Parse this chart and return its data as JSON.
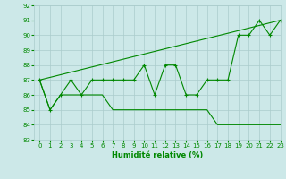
{
  "xlabel": "Humidité relative (%)",
  "xlim": [
    -0.5,
    23
  ],
  "ylim": [
    83,
    92
  ],
  "yticks": [
    83,
    84,
    85,
    86,
    87,
    88,
    89,
    90,
    91,
    92
  ],
  "xticks": [
    0,
    1,
    2,
    3,
    4,
    5,
    6,
    7,
    8,
    9,
    10,
    11,
    12,
    13,
    14,
    15,
    16,
    17,
    18,
    19,
    20,
    21,
    22,
    23
  ],
  "background_color": "#cce8e8",
  "grid_color": "#aacccc",
  "line_color": "#008800",
  "line1_x": [
    0,
    1,
    2,
    3,
    4,
    5,
    6,
    7,
    8,
    9,
    10,
    11,
    12,
    13,
    14,
    15,
    16,
    17,
    18,
    19,
    20,
    21,
    22,
    23
  ],
  "line1_y": [
    87,
    85,
    86,
    87,
    86,
    87,
    87,
    87,
    87,
    87,
    88,
    86,
    88,
    88,
    86,
    86,
    87,
    87,
    87,
    90,
    90,
    91,
    90,
    91
  ],
  "line2_x": [
    0,
    23
  ],
  "line2_y": [
    87,
    91
  ],
  "line3_x": [
    0,
    1,
    2,
    3,
    4,
    5,
    6,
    7,
    8,
    9,
    10,
    11,
    12,
    13,
    14,
    15,
    16,
    17,
    18,
    19,
    20,
    21,
    22,
    23
  ],
  "line3_y": [
    87,
    85,
    86,
    86,
    86,
    86,
    86,
    85,
    85,
    85,
    85,
    85,
    85,
    85,
    85,
    85,
    85,
    84,
    84,
    84,
    84,
    84,
    84,
    84
  ]
}
